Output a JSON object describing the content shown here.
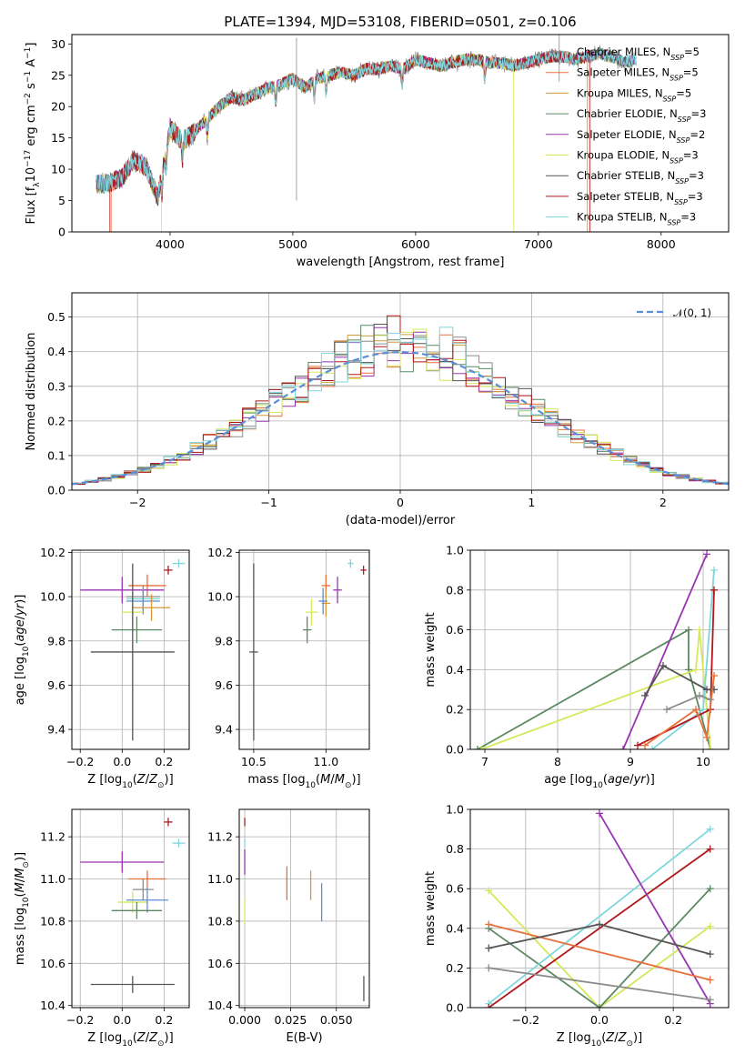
{
  "figure": {
    "title": "PLATE=1394, MJD=53108, FIBERID=0501, z=0.106"
  },
  "colors": {
    "Chabrier MILES": "#8c8c8c",
    "Salpeter MILES": "#e8703a",
    "Kroupa MILES": "#d49a3a",
    "Chabrier ELODIE": "#5d8a64",
    "Salpeter ELODIE": "#9a35b0",
    "Kroupa ELODIE": "#d4e85a",
    "Chabrier STELIB": "#555555",
    "Salpeter STELIB": "#b0181b",
    "Kroupa STELIB": "#7fd6dc",
    "gaussian": "#5b8ed6"
  },
  "chart_data": [
    {
      "type": "line",
      "title": "PLATE=1394, MJD=53108, FIBERID=0501, z=0.106",
      "xlabel": "wavelength [Angstrom, rest frame]",
      "ylabel": "Flux [fλ10⁻¹⁷ erg cm⁻² s⁻¹ A⁻¹]",
      "xlim": [
        3200,
        8550
      ],
      "ylim": [
        0,
        31.5
      ],
      "xticks": [
        4000,
        5000,
        6000,
        7000,
        8000
      ],
      "yticks": [
        0,
        5,
        10,
        15,
        20,
        25,
        30
      ],
      "grid": false,
      "legend_position": "right",
      "legend": [
        "Chabrier MILES, N_SSP=5",
        "Salpeter MILES, N_SSP=5",
        "Kroupa MILES, N_SSP=5",
        "Chabrier ELODIE, N_SSP=3",
        "Salpeter ELODIE, N_SSP=2",
        "Kroupa ELODIE, N_SSP=3",
        "Chabrier STELIB, N_SSP=3",
        "Salpeter STELIB, N_SSP=3",
        "Kroupa STELIB, N_SSP=3"
      ],
      "spectrum_envelope": {
        "x": [
          3400,
          3500,
          3600,
          3700,
          3800,
          3900,
          4000,
          4100,
          4200,
          4300,
          4400,
          4500,
          4600,
          4700,
          4800,
          4900,
          5000,
          5100,
          5200,
          5300,
          5400,
          5500,
          5600,
          5700,
          5800,
          5900,
          6000,
          6100,
          6200,
          6300,
          6400,
          6500,
          6600,
          6700,
          6800,
          6900,
          7000,
          7100,
          7200,
          7300,
          7400,
          7500,
          7600,
          7700,
          7800
        ],
        "y": [
          7.5,
          7.8,
          8.5,
          11.5,
          10.5,
          5.5,
          16.5,
          14.5,
          16,
          18,
          20,
          21.5,
          21,
          22,
          23,
          23.5,
          24.5,
          23,
          24.5,
          25,
          25.5,
          25,
          26,
          26,
          26.5,
          26,
          27.5,
          27,
          26.5,
          27,
          27.5,
          27.5,
          27,
          27,
          26.5,
          27,
          27.5,
          28,
          28,
          27.5,
          28,
          28.5,
          28,
          27,
          27.5
        ]
      }
    },
    {
      "type": "bar",
      "xlabel": "(data-model)/error",
      "ylabel": "Normed distribution",
      "xlim": [
        -2.5,
        2.5
      ],
      "ylim": [
        0,
        0.57
      ],
      "xticks": [
        -2,
        -1,
        0,
        1,
        2
      ],
      "yticks": [
        0.0,
        0.1,
        0.2,
        0.3,
        0.4,
        0.5
      ],
      "grid": true,
      "legend_position": "top-right",
      "legend": [
        "𝒩(0, 1)"
      ],
      "bin_width": 0.1,
      "gaussian_curve": {
        "mean": 0,
        "sigma": 1
      }
    },
    {
      "type": "scatter",
      "xlabel": "Z [log10(Z/Z☉)]",
      "ylabel": "age [log10(age/yr)]",
      "xlim": [
        -0.24,
        0.32
      ],
      "ylim": [
        9.31,
        10.21
      ],
      "xticks": [
        -0.2,
        0.0,
        0.2
      ],
      "yticks": [
        9.4,
        9.6,
        9.8,
        10.0,
        10.2
      ],
      "grid": true,
      "points": [
        {
          "series": "Kroupa STELIB",
          "x": 0.27,
          "y": 10.15,
          "xerr": 0.03,
          "yerr": 0.02
        },
        {
          "series": "Salpeter STELIB",
          "x": 0.22,
          "y": 10.12,
          "xerr": 0.02,
          "yerr": 0.02
        },
        {
          "series": "Salpeter MILES",
          "x": 0.12,
          "y": 10.05,
          "xerr": 0.09,
          "yerr": 0.05
        },
        {
          "series": "Salpeter ELODIE",
          "x": 0.0,
          "y": 10.03,
          "xerr": 0.2,
          "yerr": 0.06
        },
        {
          "series": "Chabrier MILES",
          "x": 0.1,
          "y": 10.0,
          "xerr": 0.08,
          "yerr": 0.05
        },
        {
          "series": "Kroupa STELIB",
          "x": 0.1,
          "y": 9.99,
          "xerr": 0.08,
          "yerr": 0.05
        },
        {
          "series": "gaussian",
          "x": 0.1,
          "y": 9.98,
          "xerr": 0.08,
          "yerr": 0.06
        },
        {
          "series": "Kroupa MILES",
          "x": 0.14,
          "y": 9.95,
          "xerr": 0.09,
          "yerr": 0.06
        },
        {
          "series": "Kroupa ELODIE",
          "x": 0.05,
          "y": 9.93,
          "xerr": 0.05,
          "yerr": 0.06
        },
        {
          "series": "Chabrier ELODIE",
          "x": 0.07,
          "y": 9.85,
          "xerr": 0.12,
          "yerr": 0.06
        },
        {
          "series": "Chabrier STELIB",
          "x": 0.05,
          "y": 9.75,
          "xerr": 0.2,
          "yerr": 0.4
        }
      ]
    },
    {
      "type": "scatter",
      "xlabel": "mass [log10(M/M☉)]",
      "ylabel": "",
      "xlim": [
        10.4,
        11.3
      ],
      "ylim": [
        9.31,
        10.21
      ],
      "xticks": [
        10.5,
        11.0
      ],
      "yticks": [
        9.4,
        9.6,
        9.8,
        10.0,
        10.2
      ],
      "grid": true,
      "points": [
        {
          "series": "Kroupa STELIB",
          "x": 11.17,
          "y": 10.15,
          "xerr": 0.02,
          "yerr": 0.02
        },
        {
          "series": "Salpeter STELIB",
          "x": 11.26,
          "y": 10.12,
          "xerr": 0.02,
          "yerr": 0.02
        },
        {
          "series": "Salpeter MILES",
          "x": 11.0,
          "y": 10.05,
          "xerr": 0.03,
          "yerr": 0.05
        },
        {
          "series": "Salpeter ELODIE",
          "x": 11.08,
          "y": 10.03,
          "xerr": 0.03,
          "yerr": 0.06
        },
        {
          "series": "Kroupa MILES",
          "x": 11.0,
          "y": 9.97,
          "xerr": 0.03,
          "yerr": 0.06
        },
        {
          "series": "gaussian",
          "x": 10.98,
          "y": 9.98,
          "xerr": 0.03,
          "yerr": 0.06
        },
        {
          "series": "Kroupa ELODIE",
          "x": 10.9,
          "y": 9.93,
          "xerr": 0.04,
          "yerr": 0.06
        },
        {
          "series": "Chabrier ELODIE",
          "x": 10.87,
          "y": 9.85,
          "xerr": 0.03,
          "yerr": 0.06
        },
        {
          "series": "Chabrier STELIB",
          "x": 10.5,
          "y": 9.75,
          "xerr": 0.03,
          "yerr": 0.4
        }
      ]
    },
    {
      "type": "line",
      "xlabel": "age [log10(age/yr)]",
      "ylabel": "mass weight",
      "xlim": [
        6.8,
        10.35
      ],
      "ylim": [
        0,
        1
      ],
      "xticks": [
        7,
        8,
        9,
        10
      ],
      "yticks": [
        0.0,
        0.2,
        0.4,
        0.6,
        0.8,
        1.0
      ],
      "grid": true,
      "series": [
        {
          "name": "Chabrier ELODIE",
          "x": [
            6.9,
            9.8,
            9.8,
            10.1
          ],
          "y": [
            0.0,
            0.6,
            0.4,
            0.0
          ]
        },
        {
          "name": "Kroupa ELODIE",
          "x": [
            6.95,
            9.9,
            9.95,
            10.1
          ],
          "y": [
            0.0,
            0.4,
            0.6,
            0.0
          ]
        },
        {
          "name": "Salpeter ELODIE",
          "x": [
            8.9,
            10.05
          ],
          "y": [
            0.0,
            0.98
          ]
        },
        {
          "name": "Kroupa STELIB",
          "x": [
            9.3,
            10.0,
            10.15
          ],
          "y": [
            0.0,
            0.2,
            0.9
          ]
        },
        {
          "name": "Salpeter STELIB",
          "x": [
            9.1,
            10.1,
            10.15
          ],
          "y": [
            0.02,
            0.2,
            0.8
          ]
        },
        {
          "name": "Chabrier STELIB",
          "x": [
            9.2,
            9.45,
            10.05,
            10.15
          ],
          "y": [
            0.27,
            0.42,
            0.3,
            0.3
          ]
        },
        {
          "name": "Salpeter MILES",
          "x": [
            9.2,
            9.9,
            10.05,
            10.15
          ],
          "y": [
            0.02,
            0.2,
            0.06,
            0.37
          ]
        },
        {
          "name": "Chabrier MILES",
          "x": [
            9.5,
            9.95,
            10.1
          ],
          "y": [
            0.2,
            0.27,
            0.25
          ]
        }
      ]
    },
    {
      "type": "scatter",
      "xlabel": "Z [log10(Z/Z☉)]",
      "ylabel": "mass [log10(M/M☉)]",
      "xlim": [
        -0.24,
        0.32
      ],
      "ylim": [
        10.39,
        11.33
      ],
      "xticks": [
        -0.2,
        0.0,
        0.2
      ],
      "yticks": [
        10.4,
        10.6,
        10.8,
        11.0,
        11.2
      ],
      "grid": true,
      "points": [
        {
          "series": "Salpeter STELIB",
          "x": 0.22,
          "y": 11.27,
          "xerr": 0.02,
          "yerr": 0.02
        },
        {
          "series": "Kroupa STELIB",
          "x": 0.27,
          "y": 11.17,
          "xerr": 0.03,
          "yerr": 0.02
        },
        {
          "series": "Salpeter ELODIE",
          "x": 0.0,
          "y": 11.08,
          "xerr": 0.2,
          "yerr": 0.05
        },
        {
          "series": "Salpeter MILES",
          "x": 0.12,
          "y": 11.0,
          "xerr": 0.09,
          "yerr": 0.04
        },
        {
          "series": "Chabrier MILES",
          "x": 0.1,
          "y": 10.95,
          "xerr": 0.05,
          "yerr": 0.05
        },
        {
          "series": "Kroupa ELODIE",
          "x": 0.05,
          "y": 10.89,
          "xerr": 0.07,
          "yerr": 0.05
        },
        {
          "series": "gaussian",
          "x": 0.12,
          "y": 10.9,
          "xerr": 0.1,
          "yerr": 0.06
        },
        {
          "series": "Chabrier ELODIE",
          "x": 0.07,
          "y": 10.85,
          "xerr": 0.12,
          "yerr": 0.04
        },
        {
          "series": "Chabrier STELIB",
          "x": 0.05,
          "y": 10.5,
          "xerr": 0.2,
          "yerr": 0.04
        }
      ]
    },
    {
      "type": "scatter",
      "xlabel": "E(B-V)",
      "ylabel": "",
      "xlim": [
        -0.003,
        0.068
      ],
      "ylim": [
        10.39,
        11.33
      ],
      "xticks": [
        0.0,
        0.025,
        0.05
      ],
      "xtick_labels": [
        "0.000",
        "0.025",
        "0.050"
      ],
      "yticks": [
        10.4,
        10.6,
        10.8,
        11.0,
        11.2
      ],
      "grid": true,
      "points": [
        {
          "series": "Salpeter STELIB",
          "x": 0.0,
          "y": 11.27,
          "xerr": 0.0,
          "yerr": 0.02
        },
        {
          "series": "Kroupa STELIB",
          "x": 0.0,
          "y": 11.17,
          "xerr": 0.0,
          "yerr": 0.02
        },
        {
          "series": "Salpeter ELODIE",
          "x": 0.0,
          "y": 11.08,
          "xerr": 0.0,
          "yerr": 0.06
        },
        {
          "series": "Kroupa ELODIE",
          "x": 0.0,
          "y": 10.85,
          "xerr": 0.0,
          "yerr": 0.06
        },
        {
          "series": "Salpeter MILES",
          "x": 0.023,
          "y": 10.98,
          "xerr": 0.0,
          "yerr": 0.08
        },
        {
          "series": "Kroupa MILES",
          "x": 0.036,
          "y": 10.97,
          "xerr": 0.0,
          "yerr": 0.07
        },
        {
          "series": "gaussian",
          "x": 0.042,
          "y": 10.89,
          "xerr": 0.0,
          "yerr": 0.09
        },
        {
          "series": "Chabrier STELIB",
          "x": 0.065,
          "y": 10.48,
          "xerr": 0.0,
          "yerr": 0.06
        }
      ]
    },
    {
      "type": "line",
      "xlabel": "Z [log10(Z/Z☉)]",
      "ylabel": "mass weight",
      "xlim": [
        -0.35,
        0.35
      ],
      "ylim": [
        0,
        1
      ],
      "xticks": [
        -0.2,
        0.0,
        0.2
      ],
      "yticks": [
        0.0,
        0.2,
        0.4,
        0.6,
        0.8,
        1.0
      ],
      "grid": true,
      "series": [
        {
          "name": "Kroupa ELODIE",
          "x": [
            -0.3,
            0.0,
            0.3
          ],
          "y": [
            0.59,
            0.0,
            0.41
          ]
        },
        {
          "name": "Chabrier ELODIE",
          "x": [
            -0.3,
            0.0,
            0.3
          ],
          "y": [
            0.4,
            0.0,
            0.6
          ]
        },
        {
          "name": "Kroupa STELIB",
          "x": [
            -0.3,
            0.3
          ],
          "y": [
            0.02,
            0.9
          ]
        },
        {
          "name": "Salpeter STELIB",
          "x": [
            -0.3,
            0.3
          ],
          "y": [
            0.0,
            0.8
          ]
        },
        {
          "name": "Salpeter ELODIE",
          "x": [
            0.0,
            0.3
          ],
          "y": [
            0.98,
            0.02
          ]
        },
        {
          "name": "Salpeter MILES",
          "x": [
            -0.3,
            0.3
          ],
          "y": [
            0.42,
            0.14
          ]
        },
        {
          "name": "Chabrier STELIB",
          "x": [
            -0.3,
            0.0,
            0.3
          ],
          "y": [
            0.3,
            0.42,
            0.27
          ]
        },
        {
          "name": "Chabrier MILES",
          "x": [
            -0.3,
            0.3
          ],
          "y": [
            0.2,
            0.04
          ]
        }
      ]
    }
  ]
}
